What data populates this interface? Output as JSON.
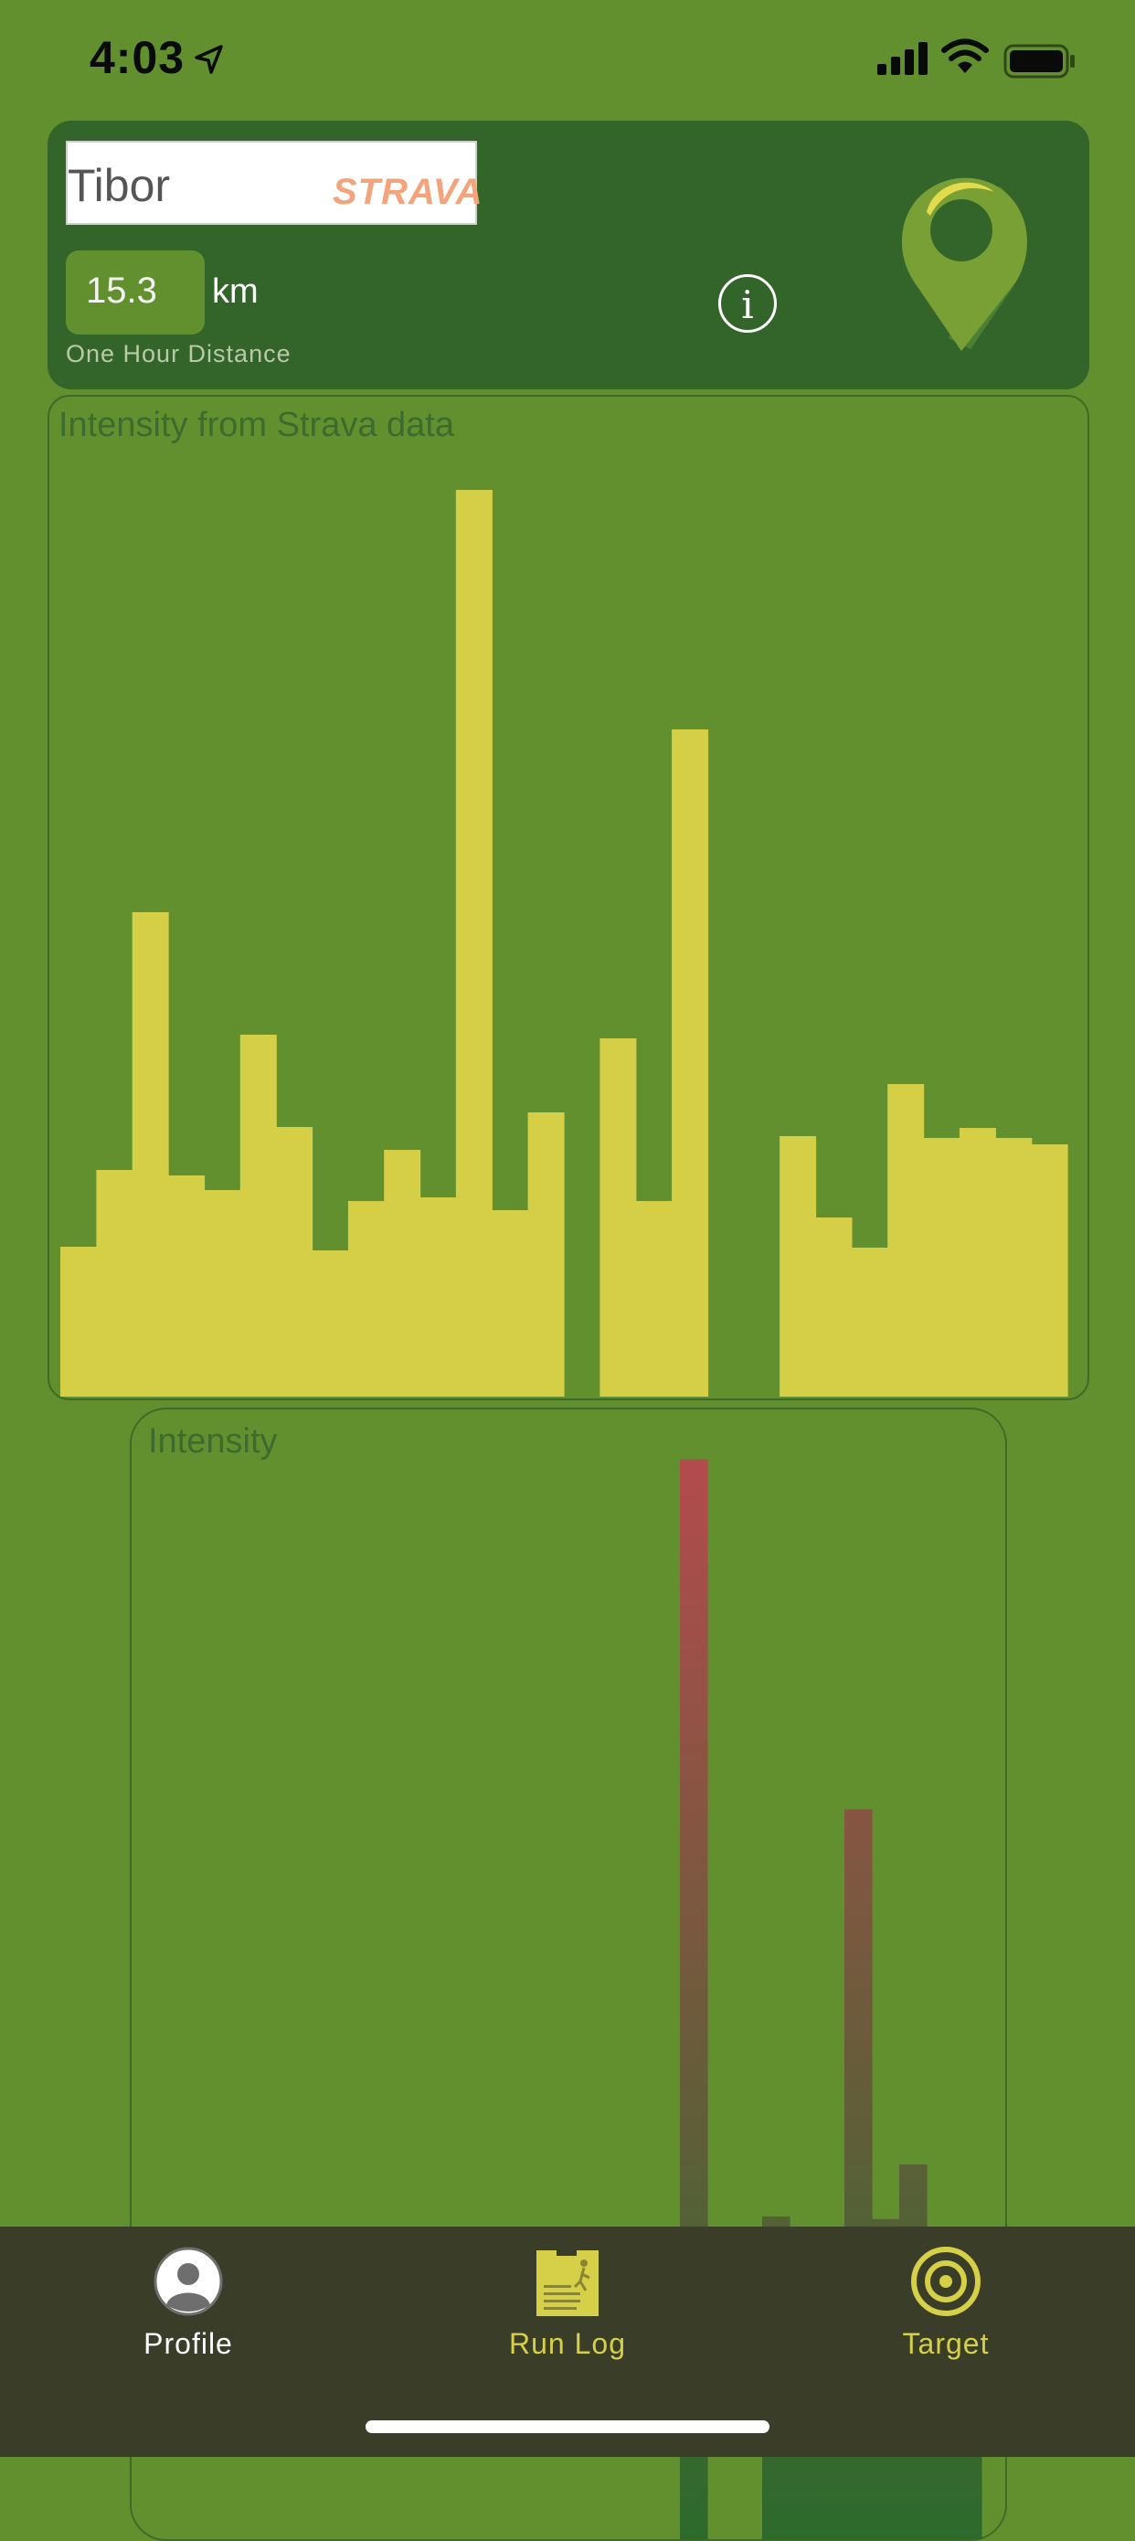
{
  "status_bar": {
    "time": "4:03"
  },
  "profile": {
    "name": "Tibor",
    "brand": "STRAVA",
    "one_hour_distance": "15.3",
    "unit": "km",
    "distance_label": "One Hour Distance",
    "info_icon": "info-icon",
    "pin_icon": "map-pin-icon"
  },
  "chart_data": [
    {
      "type": "bar",
      "title": "Intensity from Strava data",
      "values": [
        164,
        248,
        530,
        242,
        226,
        396,
        295,
        160,
        214,
        270,
        218,
        992,
        204,
        311,
        0,
        392,
        214,
        730,
        0,
        0,
        285,
        196,
        163,
        342,
        283,
        294,
        283,
        276
      ],
      "ylim": [
        0,
        1000
      ],
      "color": "#d5cf47",
      "grid": false
    },
    {
      "type": "bar",
      "title": "Intensity",
      "values": [
        0,
        0,
        0,
        0,
        0,
        0,
        0,
        0,
        0,
        0,
        0,
        0,
        0,
        0,
        0,
        0,
        0,
        0,
        0,
        0,
        870,
        0,
        0,
        260,
        162,
        150,
        588,
        258,
        302,
        248,
        246
      ],
      "ylim": [
        0,
        900
      ],
      "colors": [
        "#2c6a2c",
        "#b74a4e"
      ],
      "grid": false
    }
  ],
  "tabs": [
    {
      "label": "Profile",
      "icon": "profile-icon",
      "active": true
    },
    {
      "label": "Run Log",
      "icon": "run-log-icon",
      "active": false
    },
    {
      "label": "Target",
      "icon": "target-icon",
      "active": false
    }
  ],
  "colors": {
    "background": "#62902e",
    "card": "#33652a",
    "bars": "#d5cf47",
    "tab_bar": "#3a3e28",
    "tab_accent": "#d6cf48"
  }
}
